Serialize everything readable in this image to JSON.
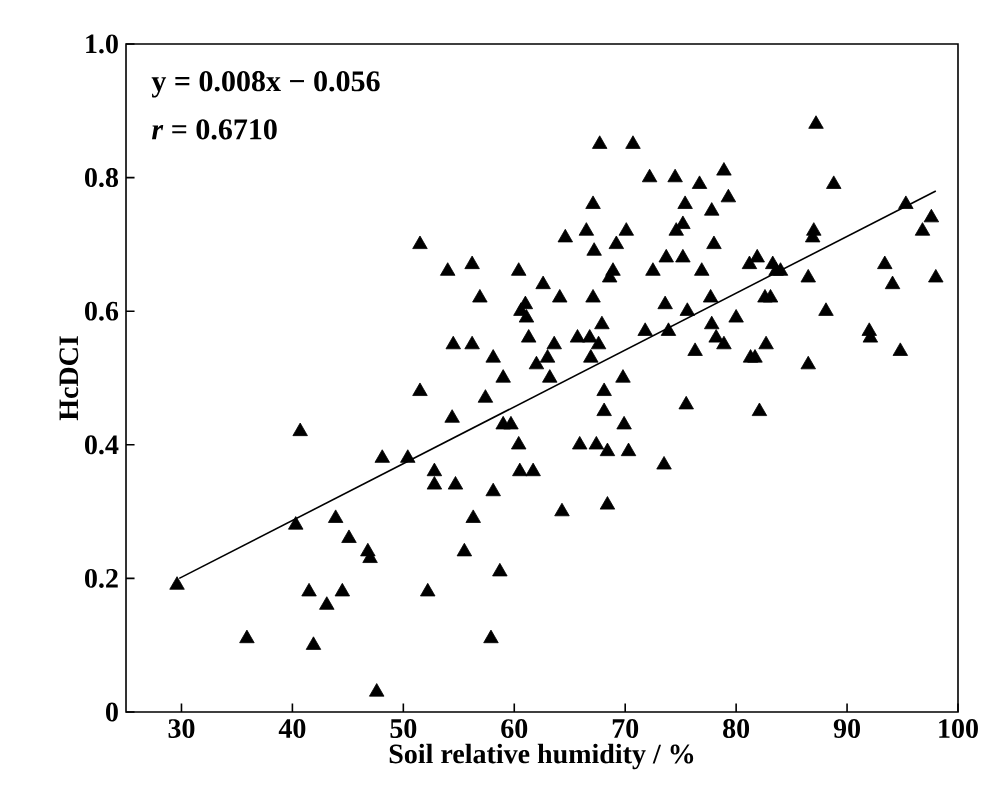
{
  "chart_data": {
    "type": "scatter",
    "xlabel": "Soil relative humidity / %",
    "ylabel": "HcDCI",
    "annotations": [
      "y = 0.008x − 0.056",
      "*r* = 0.6710"
    ],
    "xlim": [
      25,
      100
    ],
    "ylim": [
      0,
      1
    ],
    "xticks": [
      30,
      40,
      50,
      60,
      70,
      80,
      90,
      100
    ],
    "yticks": [
      0,
      0.2,
      0.4,
      0.6,
      0.8,
      {
        "value": 1,
        "label": "1.0"
      }
    ],
    "marker": "triangle",
    "series": [
      {
        "color": "#000000",
        "x": [
          29.6,
          35.9,
          40.7,
          40.3,
          41.5,
          41.9,
          43.1,
          43.9,
          44.5,
          45.1,
          46.8,
          47.0,
          47.6,
          48.1,
          50.4,
          51.5,
          51.5,
          52.2,
          52.8,
          52.8,
          54.0,
          54.4,
          54.5,
          54.7,
          55.5,
          56.2,
          56.2,
          56.3,
          56.9,
          57.4,
          57.9,
          58.1,
          58.1,
          58.7,
          59.0,
          59.0,
          59.7,
          60.4,
          60.4,
          60.5,
          60.6,
          61.0,
          61.1,
          61.3,
          61.7,
          62.0,
          62.6,
          63.0,
          63.2,
          63.6,
          64.1,
          64.3,
          64.6,
          65.7,
          65.9,
          66.5,
          66.8,
          66.9,
          67.1,
          67.1,
          67.2,
          67.4,
          67.6,
          67.7,
          67.9,
          68.1,
          68.1,
          68.4,
          68.4,
          68.6,
          68.9,
          69.2,
          69.8,
          69.9,
          70.1,
          70.3,
          70.7,
          71.8,
          72.2,
          72.5,
          73.5,
          73.6,
          73.7,
          73.9,
          74.5,
          74.6,
          75.2,
          75.2,
          75.4,
          75.5,
          75.6,
          76.3,
          76.7,
          76.9,
          77.7,
          77.8,
          77.8,
          78.0,
          78.2,
          78.9,
          78.9,
          79.3,
          80.0,
          81.2,
          81.3,
          81.7,
          81.9,
          82.1,
          82.6,
          82.7,
          83.1,
          83.3,
          83.6,
          84.0,
          86.5,
          86.5,
          86.9,
          87.0,
          87.2,
          88.1,
          88.8,
          92.0,
          92.1,
          93.4,
          94.1,
          94.8,
          95.3,
          96.8,
          97.6,
          98.0
        ],
        "values": [
          0.19,
          0.11,
          0.42,
          0.28,
          0.18,
          0.1,
          0.16,
          0.29,
          0.18,
          0.26,
          0.24,
          0.23,
          0.03,
          0.38,
          0.38,
          0.7,
          0.48,
          0.18,
          0.36,
          0.34,
          0.66,
          0.44,
          0.55,
          0.34,
          0.24,
          0.55,
          0.67,
          0.29,
          0.62,
          0.47,
          0.11,
          0.53,
          0.33,
          0.21,
          0.5,
          0.43,
          0.43,
          0.66,
          0.4,
          0.36,
          0.6,
          0.61,
          0.59,
          0.56,
          0.36,
          0.52,
          0.64,
          0.53,
          0.5,
          0.55,
          0.62,
          0.3,
          0.71,
          0.56,
          0.4,
          0.72,
          0.56,
          0.53,
          0.76,
          0.62,
          0.69,
          0.4,
          0.55,
          0.85,
          0.58,
          0.48,
          0.45,
          0.39,
          0.31,
          0.65,
          0.66,
          0.7,
          0.5,
          0.43,
          0.72,
          0.39,
          0.85,
          0.57,
          0.8,
          0.66,
          0.37,
          0.61,
          0.68,
          0.57,
          0.8,
          0.72,
          0.73,
          0.68,
          0.76,
          0.46,
          0.6,
          0.54,
          0.79,
          0.66,
          0.62,
          0.75,
          0.58,
          0.7,
          0.56,
          0.55,
          0.81,
          0.77,
          0.59,
          0.67,
          0.53,
          0.53,
          0.68,
          0.45,
          0.62,
          0.55,
          0.62,
          0.67,
          0.66,
          0.66,
          0.65,
          0.52,
          0.71,
          0.72,
          0.88,
          0.6,
          0.79,
          0.57,
          0.56,
          0.67,
          0.64,
          0.54,
          0.76,
          0.72,
          0.74,
          0.65
        ]
      },
      {
        "type": "line",
        "color": "#000000",
        "marker": "none",
        "x": [
          29.8,
          98.0
        ],
        "values": [
          0.2,
          0.78
        ]
      }
    ]
  }
}
